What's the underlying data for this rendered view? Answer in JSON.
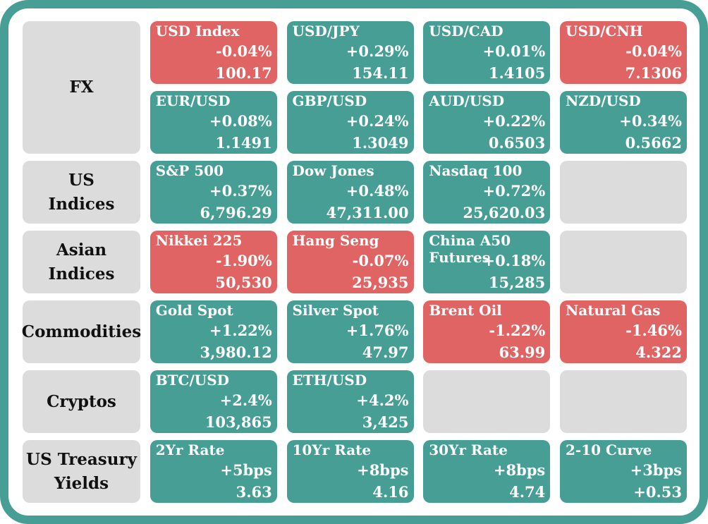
{
  "rows": [
    {
      "category": "FX",
      "tiles": [
        {
          "name": "USD Index",
          "change": "-0.04%",
          "value": "100.17",
          "trend": "down"
        },
        {
          "name": "USD/JPY",
          "change": "+0.29%",
          "value": "154.11",
          "trend": "up"
        },
        {
          "name": "USD/CAD",
          "change": "+0.01%",
          "value": "1.4105",
          "trend": "up"
        },
        {
          "name": "USD/CNH",
          "change": "-0.04%",
          "value": "7.1306",
          "trend": "down"
        },
        {
          "name": "EUR/USD",
          "change": "+0.08%",
          "value": "1.1491",
          "trend": "up"
        },
        {
          "name": "GBP/USD",
          "change": "+0.24%",
          "value": "1.3049",
          "trend": "up"
        },
        {
          "name": "AUD/USD",
          "change": "+0.22%",
          "value": "0.6503",
          "trend": "up"
        },
        {
          "name": "NZD/USD",
          "change": "+0.34%",
          "value": "0.5662",
          "trend": "up"
        }
      ]
    },
    {
      "category": "US Indices",
      "tiles": [
        {
          "name": "S&P 500",
          "change": "+0.37%",
          "value": "6,796.29",
          "trend": "up"
        },
        {
          "name": "Dow Jones",
          "change": "+0.48%",
          "value": "47,311.00",
          "trend": "up"
        },
        {
          "name": "Nasdaq 100",
          "change": "+0.72%",
          "value": "25,620.03",
          "trend": "up"
        },
        {
          "empty": true
        }
      ]
    },
    {
      "category": "Asian Indices",
      "tiles": [
        {
          "name": "Nikkei 225",
          "change": "-1.90%",
          "value": "50,530",
          "trend": "down"
        },
        {
          "name": "Hang Seng",
          "change": "-0.07%",
          "value": "25,935",
          "trend": "down"
        },
        {
          "name": "China A50 Futures",
          "change": "+0.18%",
          "value": "15,285",
          "trend": "up"
        },
        {
          "empty": true
        }
      ]
    },
    {
      "category": "Commodities",
      "tiles": [
        {
          "name": "Gold Spot",
          "change": "+1.22%",
          "value": "3,980.12",
          "trend": "up"
        },
        {
          "name": "Silver Spot",
          "change": "+1.76%",
          "value": "47.97",
          "trend": "up"
        },
        {
          "name": "Brent Oil",
          "change": "-1.22%",
          "value": "63.99",
          "trend": "down"
        },
        {
          "name": "Natural Gas",
          "change": "-1.46%",
          "value": "4.322",
          "trend": "down"
        }
      ]
    },
    {
      "category": "Cryptos",
      "tiles": [
        {
          "name": "BTC/USD",
          "change": "+2.4%",
          "value": "103,865",
          "trend": "up"
        },
        {
          "name": "ETH/USD",
          "change": "+4.2%",
          "value": "3,425",
          "trend": "up"
        },
        {
          "empty": true
        },
        {
          "empty": true
        }
      ]
    },
    {
      "category": "US Treasury Yields",
      "tiles": [
        {
          "name": "2Yr Rate",
          "change": "+5bps",
          "value": "3.63",
          "trend": "up"
        },
        {
          "name": "10Yr Rate",
          "change": "+8bps",
          "value": "4.16",
          "trend": "up"
        },
        {
          "name": "30Yr Rate",
          "change": "+8bps",
          "value": "4.74",
          "trend": "up"
        },
        {
          "name": "2-10 Curve",
          "change": "+3bps",
          "value": "+0.53",
          "trend": "up"
        }
      ]
    }
  ],
  "colors": {
    "up": "#469e94",
    "down": "#e06464",
    "empty": "#dcdcdc",
    "frame": "#469e94"
  }
}
